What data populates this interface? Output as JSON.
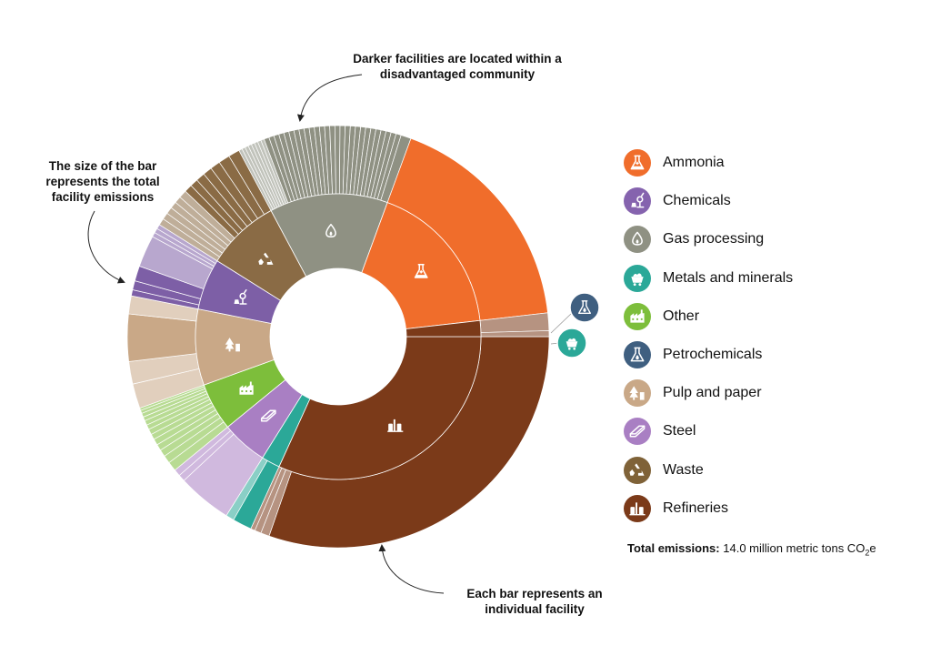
{
  "chart_data": {
    "type": "sunburst",
    "unit_note": "Each bar represents an individual facility; size of bar = total facility emissions",
    "categories": [
      {
        "name": "Refineries",
        "color": "#7B3A19",
        "share": 0.318,
        "facilities": [
          {
            "value": 0.92,
            "dac": true
          },
          {
            "value": 0.02,
            "dac": false
          },
          {
            "value": 0.015,
            "dac": false
          },
          {
            "value": 0.01,
            "dac": false
          }
        ]
      },
      {
        "name": "Metals and minerals",
        "color": "#2BA898",
        "share": 0.021,
        "facilities": [
          {
            "value": 0.7,
            "dac": true
          },
          {
            "value": 0.3,
            "dac": false
          }
        ]
      },
      {
        "name": "Steel",
        "color": "#A97FC3",
        "share": 0.052,
        "facilities": [
          {
            "value": 0.8,
            "dac": false
          },
          {
            "value": 0.1,
            "dac": false
          },
          {
            "value": 0.1,
            "dac": false
          }
        ]
      },
      {
        "name": "Other",
        "color": "#7DBE3B",
        "share": 0.054,
        "facilities": [
          {
            "value": 0.12,
            "dac": false
          },
          {
            "value": 0.1,
            "dac": false
          },
          {
            "value": 0.09,
            "dac": false
          },
          {
            "value": 0.08,
            "dac": false
          },
          {
            "value": 0.08,
            "dac": false
          },
          {
            "value": 0.07,
            "dac": false
          },
          {
            "value": 0.07,
            "dac": false
          },
          {
            "value": 0.06,
            "dac": false
          },
          {
            "value": 0.06,
            "dac": false
          },
          {
            "value": 0.05,
            "dac": false
          },
          {
            "value": 0.05,
            "dac": false
          },
          {
            "value": 0.04,
            "dac": false
          },
          {
            "value": 0.03,
            "dac": false
          }
        ]
      },
      {
        "name": "Pulp and paper",
        "color": "#C9A887",
        "share": 0.086,
        "facilities": [
          {
            "value": 0.22,
            "dac": false
          },
          {
            "value": 0.2,
            "dac": false
          },
          {
            "value": 0.42,
            "dac": true
          },
          {
            "value": 0.16,
            "dac": false
          }
        ]
      },
      {
        "name": "Chemicals",
        "color": "#7D5FA6",
        "share": 0.058,
        "facilities": [
          {
            "value": 0.08,
            "dac": true
          },
          {
            "value": 0.12,
            "dac": true
          },
          {
            "value": 0.2,
            "dac": true
          },
          {
            "value": 0.42,
            "dac": false
          },
          {
            "value": 0.06,
            "dac": false
          },
          {
            "value": 0.06,
            "dac": false
          },
          {
            "value": 0.06,
            "dac": false
          }
        ]
      },
      {
        "name": "Waste",
        "color": "#8A6B45",
        "share": 0.083,
        "facilities": [
          {
            "value": 0.06,
            "dac": false
          },
          {
            "value": 0.06,
            "dac": false
          },
          {
            "value": 0.06,
            "dac": false
          },
          {
            "value": 0.06,
            "dac": false
          },
          {
            "value": 0.06,
            "dac": false
          },
          {
            "value": 0.07,
            "dac": false
          },
          {
            "value": 0.07,
            "dac": true
          },
          {
            "value": 0.07,
            "dac": true
          },
          {
            "value": 0.08,
            "dac": true
          },
          {
            "value": 0.08,
            "dac": true
          },
          {
            "value": 0.09,
            "dac": true
          },
          {
            "value": 0.1,
            "dac": true
          },
          {
            "value": 0.1,
            "dac": true
          }
        ]
      },
      {
        "name": "Gas processing",
        "color": "#8F9183",
        "share": 0.134,
        "facilities": [
          {
            "value": 0.02,
            "dac": false
          },
          {
            "value": 0.02,
            "dac": false
          },
          {
            "value": 0.02,
            "dac": false
          },
          {
            "value": 0.02,
            "dac": false
          },
          {
            "value": 0.02,
            "dac": false
          },
          {
            "value": 0.02,
            "dac": false
          },
          {
            "value": 0.02,
            "dac": false
          },
          {
            "value": 0.02,
            "dac": false
          },
          {
            "value": 0.03,
            "dac": true
          },
          {
            "value": 0.03,
            "dac": true
          },
          {
            "value": 0.03,
            "dac": true
          },
          {
            "value": 0.03,
            "dac": true
          },
          {
            "value": 0.03,
            "dac": true
          },
          {
            "value": 0.03,
            "dac": true
          },
          {
            "value": 0.03,
            "dac": true
          },
          {
            "value": 0.03,
            "dac": true
          },
          {
            "value": 0.03,
            "dac": true
          },
          {
            "value": 0.03,
            "dac": true
          },
          {
            "value": 0.03,
            "dac": true
          },
          {
            "value": 0.03,
            "dac": true
          },
          {
            "value": 0.03,
            "dac": true
          },
          {
            "value": 0.03,
            "dac": true
          },
          {
            "value": 0.03,
            "dac": true
          },
          {
            "value": 0.03,
            "dac": true
          },
          {
            "value": 0.03,
            "dac": true
          },
          {
            "value": 0.03,
            "dac": true
          },
          {
            "value": 0.03,
            "dac": true
          },
          {
            "value": 0.03,
            "dac": true
          },
          {
            "value": 0.03,
            "dac": true
          },
          {
            "value": 0.03,
            "dac": true
          },
          {
            "value": 0.03,
            "dac": true
          },
          {
            "value": 0.03,
            "dac": true
          },
          {
            "value": 0.03,
            "dac": true
          },
          {
            "value": 0.03,
            "dac": true
          },
          {
            "value": 0.03,
            "dac": true
          },
          {
            "value": 0.06,
            "dac": true
          }
        ]
      },
      {
        "name": "Ammonia",
        "color": "#F06D2B",
        "share": 0.176,
        "facilities": [
          {
            "value": 1.0,
            "dac": true
          }
        ]
      },
      {
        "name": "Refineries",
        "color": "#7B3A19",
        "share": 0.018,
        "facilities": [
          {
            "value": 0.75,
            "dac": false
          },
          {
            "value": 0.25,
            "dac": false
          }
        ]
      }
    ],
    "legend": [
      {
        "name": "Ammonia",
        "color": "#F06D2B",
        "icon": "flask-plus-icon"
      },
      {
        "name": "Chemicals",
        "color": "#8563AE",
        "icon": "lab-apparatus-icon"
      },
      {
        "name": "Gas processing",
        "color": "#8F9183",
        "icon": "flame-drop-icon"
      },
      {
        "name": "Metals and minerals",
        "color": "#2BA898",
        "icon": "mine-cart-icon"
      },
      {
        "name": "Other",
        "color": "#7DBE3B",
        "icon": "factory-icon"
      },
      {
        "name": "Petrochemicals",
        "color": "#3F5F80",
        "icon": "flask-drop-icon"
      },
      {
        "name": "Pulp and paper",
        "color": "#C9A887",
        "icon": "tree-paper-icon"
      },
      {
        "name": "Steel",
        "color": "#A97FC3",
        "icon": "steel-beam-icon"
      },
      {
        "name": "Waste",
        "color": "#7F6238",
        "icon": "recycle-icon"
      },
      {
        "name": "Refineries",
        "color": "#7B3A19",
        "icon": "refinery-tanks-icon"
      }
    ],
    "small_markers": [
      {
        "name": "Petrochemicals",
        "color": "#3F5F80",
        "icon": "flask-drop-icon"
      },
      {
        "name": "Metals and minerals",
        "color": "#2BA898",
        "icon": "mine-cart-icon"
      }
    ],
    "annotations": {
      "top": "Darker facilities are located within a disadvantaged community",
      "left": "The size of the bar represents the total facility emissions",
      "bottom": "Each bar represents an individual facility"
    },
    "total": {
      "label": "Total emissions:",
      "value": "14.0 million metric tons CO",
      "sub": "2",
      "suffix": "e"
    }
  }
}
